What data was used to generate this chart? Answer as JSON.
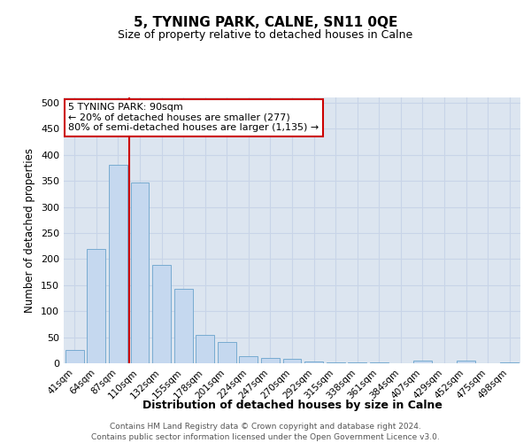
{
  "title": "5, TYNING PARK, CALNE, SN11 0QE",
  "subtitle": "Size of property relative to detached houses in Calne",
  "xlabel": "Distribution of detached houses by size in Calne",
  "ylabel": "Number of detached properties",
  "categories": [
    "41sqm",
    "64sqm",
    "87sqm",
    "110sqm",
    "132sqm",
    "155sqm",
    "178sqm",
    "201sqm",
    "224sqm",
    "247sqm",
    "270sqm",
    "292sqm",
    "315sqm",
    "338sqm",
    "361sqm",
    "384sqm",
    "407sqm",
    "429sqm",
    "452sqm",
    "475sqm",
    "498sqm"
  ],
  "values": [
    25,
    220,
    380,
    347,
    188,
    143,
    55,
    40,
    13,
    10,
    8,
    4,
    2,
    1,
    1,
    0,
    5,
    0,
    5,
    0,
    2
  ],
  "bar_color": "#c5d8ef",
  "bar_edge_color": "#6aa3cc",
  "vline_color": "#cc0000",
  "annotation_text": "5 TYNING PARK: 90sqm\n← 20% of detached houses are smaller (277)\n80% of semi-detached houses are larger (1,135) →",
  "annotation_box_color": "#ffffff",
  "annotation_box_edge": "#cc0000",
  "grid_color": "#c8d4e8",
  "background_color": "#dce5f0",
  "footer_text": "Contains HM Land Registry data © Crown copyright and database right 2024.\nContains public sector information licensed under the Open Government Licence v3.0.",
  "ylim": [
    0,
    510
  ],
  "yticks": [
    0,
    50,
    100,
    150,
    200,
    250,
    300,
    350,
    400,
    450,
    500
  ]
}
